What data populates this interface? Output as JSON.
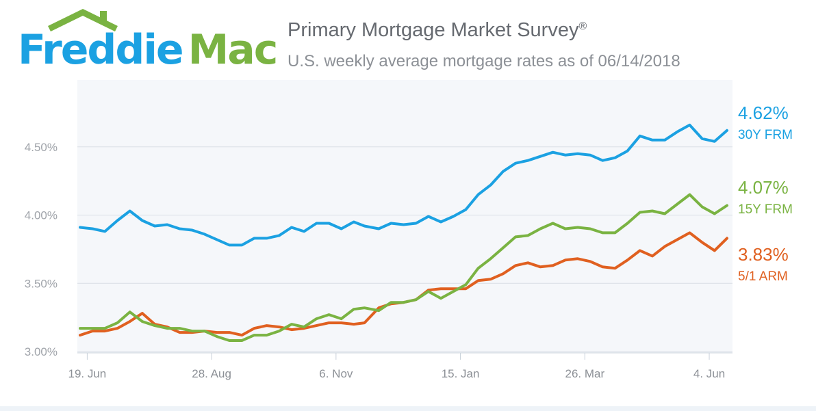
{
  "logo": {
    "word1": "Freddie",
    "word2": "Mac",
    "primary_color": "#1ba1e2",
    "secondary_color": "#7ab342"
  },
  "header": {
    "title": "Primary Mortgage Market Survey",
    "title_mark": "®",
    "subtitle": "U.S. weekly average mortgage rates as of 06/14/2018"
  },
  "chart_data": {
    "type": "line",
    "title": "Primary Mortgage Market Survey",
    "subtitle": "U.S. weekly average mortgage rates as of 06/14/2018",
    "ylim": [
      2.99,
      4.99
    ],
    "yticks": [
      3.0,
      3.5,
      4.0,
      4.5
    ],
    "ytick_labels": [
      "3.00%",
      "3.50%",
      "4.00%",
      "4.50%"
    ],
    "x_dates": [
      "2017-06-15",
      "2017-06-22",
      "2017-06-29",
      "2017-07-06",
      "2017-07-13",
      "2017-07-20",
      "2017-07-27",
      "2017-08-03",
      "2017-08-10",
      "2017-08-17",
      "2017-08-24",
      "2017-08-31",
      "2017-09-07",
      "2017-09-14",
      "2017-09-21",
      "2017-09-28",
      "2017-10-05",
      "2017-10-12",
      "2017-10-19",
      "2017-10-26",
      "2017-11-02",
      "2017-11-09",
      "2017-11-16",
      "2017-11-22",
      "2017-11-30",
      "2017-12-07",
      "2017-12-14",
      "2017-12-21",
      "2017-12-28",
      "2018-01-04",
      "2018-01-11",
      "2018-01-18",
      "2018-01-25",
      "2018-02-01",
      "2018-02-08",
      "2018-02-15",
      "2018-02-22",
      "2018-03-01",
      "2018-03-08",
      "2018-03-15",
      "2018-03-22",
      "2018-03-29",
      "2018-04-05",
      "2018-04-12",
      "2018-04-19",
      "2018-04-26",
      "2018-05-03",
      "2018-05-10",
      "2018-05-17",
      "2018-05-24",
      "2018-05-31",
      "2018-06-07",
      "2018-06-14"
    ],
    "xticks": [
      "2017-06-19",
      "2017-08-28",
      "2017-11-06",
      "2018-01-15",
      "2018-03-26",
      "2018-06-04"
    ],
    "xtick_labels": [
      "19. Jun",
      "28. Aug",
      "6. Nov",
      "15. Jan",
      "26. Mar",
      "4. Jun"
    ],
    "grid": true,
    "legend": "right-end-labels",
    "series": [
      {
        "name": "30Y FRM",
        "color": "#1ba1e2",
        "last_label": "4.62%",
        "values": [
          3.91,
          3.9,
          3.88,
          3.96,
          4.03,
          3.96,
          3.92,
          3.93,
          3.9,
          3.89,
          3.86,
          3.82,
          3.78,
          3.78,
          3.83,
          3.83,
          3.85,
          3.91,
          3.88,
          3.94,
          3.94,
          3.9,
          3.95,
          3.92,
          3.9,
          3.94,
          3.93,
          3.94,
          3.99,
          3.95,
          3.99,
          4.04,
          4.15,
          4.22,
          4.32,
          4.38,
          4.4,
          4.43,
          4.46,
          4.44,
          4.45,
          4.44,
          4.4,
          4.42,
          4.47,
          4.58,
          4.55,
          4.55,
          4.61,
          4.66,
          4.56,
          4.54,
          4.62
        ]
      },
      {
        "name": "15Y FRM",
        "color": "#7ab342",
        "last_label": "4.07%",
        "values": [
          3.17,
          3.17,
          3.17,
          3.21,
          3.29,
          3.22,
          3.19,
          3.17,
          3.17,
          3.15,
          3.15,
          3.11,
          3.08,
          3.08,
          3.12,
          3.12,
          3.15,
          3.2,
          3.18,
          3.24,
          3.27,
          3.24,
          3.31,
          3.32,
          3.3,
          3.36,
          3.36,
          3.38,
          3.44,
          3.39,
          3.44,
          3.49,
          3.61,
          3.68,
          3.76,
          3.84,
          3.85,
          3.9,
          3.94,
          3.9,
          3.91,
          3.9,
          3.87,
          3.87,
          3.94,
          4.02,
          4.03,
          4.01,
          4.08,
          4.15,
          4.06,
          4.01,
          4.07
        ]
      },
      {
        "name": "5/1 ARM",
        "color": "#e06020",
        "last_label": "3.83%",
        "values": [
          3.12,
          3.15,
          3.15,
          3.17,
          3.22,
          3.28,
          3.2,
          3.18,
          3.14,
          3.14,
          3.15,
          3.14,
          3.14,
          3.12,
          3.17,
          3.19,
          3.18,
          3.16,
          3.17,
          3.19,
          3.21,
          3.21,
          3.2,
          3.21,
          3.32,
          3.35,
          3.36,
          3.38,
          3.45,
          3.46,
          3.46,
          3.46,
          3.52,
          3.53,
          3.57,
          3.63,
          3.65,
          3.62,
          3.63,
          3.67,
          3.68,
          3.66,
          3.62,
          3.61,
          3.67,
          3.74,
          3.7,
          3.77,
          3.82,
          3.87,
          3.8,
          3.74,
          3.83
        ]
      }
    ]
  }
}
